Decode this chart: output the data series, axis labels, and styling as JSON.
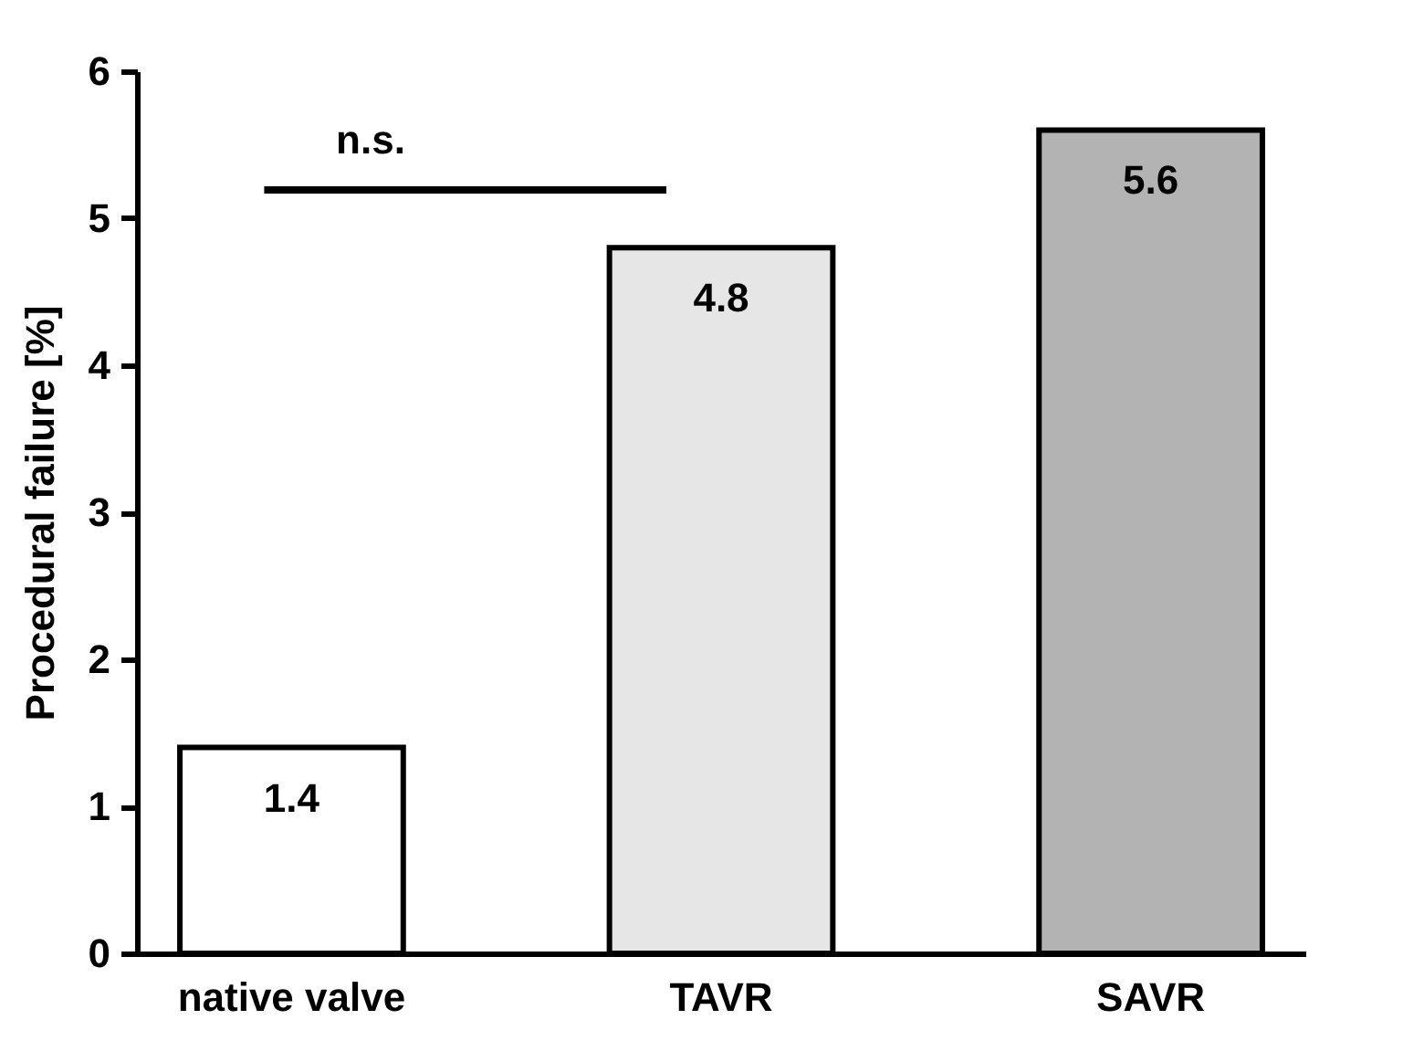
{
  "chart_data": {
    "type": "bar",
    "categories": [
      "native valve",
      "TAVR",
      "SAVR"
    ],
    "values": [
      1.4,
      4.8,
      5.6
    ],
    "colors": [
      "#ffffff",
      "#e6e6e6",
      "#b3b3b3"
    ],
    "ylabel": "Procedural failure [%]",
    "ylim": [
      0,
      6
    ],
    "yticks": [
      0,
      1,
      2,
      3,
      4,
      5,
      6
    ],
    "data_labels": true,
    "annotations": [
      "n.s."
    ]
  }
}
